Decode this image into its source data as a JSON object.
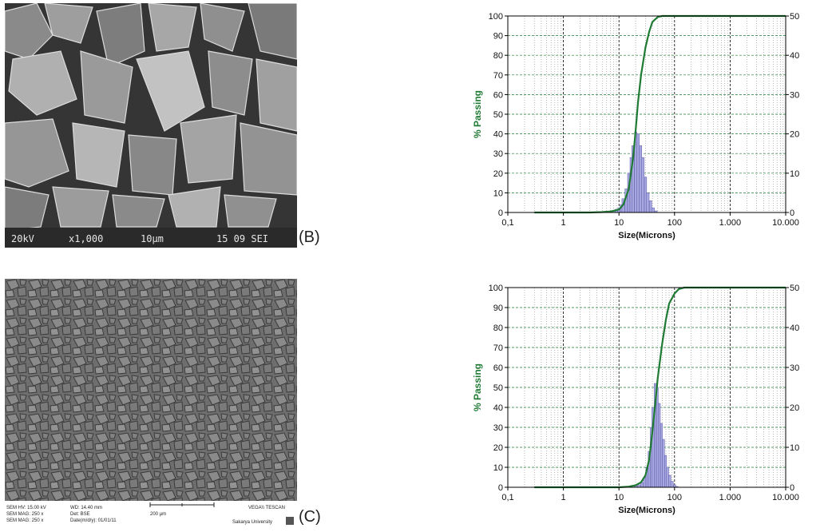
{
  "panels": [
    {
      "label": "(B)",
      "sem": {
        "info_bar": [
          "20kV",
          "x1,000",
          "10µm",
          "15 09 SEI"
        ]
      }
    },
    {
      "label": "(C)",
      "sem": {
        "info_lines_left": [
          "SEM HV: 15.00 kV",
          "SEM MAG: 250 x",
          "SEM MAG: 250 x"
        ],
        "info_lines_mid": [
          "WD: 14.40 mm",
          "Det: BSE",
          "Date(m/d/y): 01/01/11"
        ],
        "scale_bar": "200 µm",
        "brand": "VEGA\\\\ TESCAN",
        "institution": "Sakarya University"
      }
    }
  ],
  "chart_data": [
    {
      "type": "line+bar",
      "ylabel": "% Passing",
      "xlabel": "Size(Microns)",
      "xscale": "log",
      "xlim": [
        0.1,
        10000
      ],
      "ylim_left": [
        0,
        100
      ],
      "ylim_right": [
        0,
        50
      ],
      "x_tick_labels": [
        "0,1",
        "1",
        "10",
        "100",
        "1.000",
        "10.000"
      ],
      "y_tick_labels_left": [
        "0",
        "10",
        "20",
        "30",
        "40",
        "50",
        "60",
        "70",
        "80",
        "90",
        "100"
      ],
      "y_tick_labels_right": [
        "0",
        "10",
        "20",
        "30",
        "40",
        "50"
      ],
      "grid": true,
      "colors": {
        "cumulative": "#1f7a33",
        "histogram": "#a8a8e0",
        "histogram_edge": "#5a5aa8",
        "grid_major": "#000000",
        "grid_minor": "#1f7a33"
      },
      "cumulative": {
        "x": [
          0.3,
          1,
          3,
          5,
          7,
          10,
          12,
          15,
          18,
          20,
          22,
          25,
          30,
          35,
          40,
          50,
          60,
          80,
          100,
          1000,
          10000
        ],
        "y": [
          0,
          0,
          0,
          0.2,
          0.5,
          1.5,
          4,
          12,
          28,
          42,
          56,
          70,
          84,
          92,
          97,
          99.5,
          100,
          100,
          100,
          100,
          100
        ]
      },
      "histogram": {
        "x": [
          7,
          8,
          9,
          10,
          11,
          12,
          13.5,
          15,
          16.5,
          18,
          20,
          22,
          24.5,
          27,
          30,
          33,
          37,
          41,
          46
        ],
        "y": [
          0.2,
          0.4,
          0.8,
          1.2,
          2,
          3.5,
          6,
          10,
          14,
          17,
          20.5,
          20,
          17,
          14,
          9,
          5,
          3,
          1.2,
          0.4
        ]
      }
    },
    {
      "type": "line+bar",
      "ylabel": "% Passing",
      "xlabel": "Size(Microns)",
      "xscale": "log",
      "xlim": [
        0.1,
        10000
      ],
      "ylim_left": [
        0,
        100
      ],
      "ylim_right": [
        0,
        50
      ],
      "x_tick_labels": [
        "0,1",
        "1",
        "10",
        "100",
        "1.000",
        "10.000"
      ],
      "y_tick_labels_left": [
        "0",
        "10",
        "20",
        "30",
        "40",
        "50",
        "60",
        "70",
        "80",
        "90",
        "100"
      ],
      "y_tick_labels_right": [
        "0",
        "10",
        "20",
        "30",
        "40",
        "50"
      ],
      "grid": true,
      "colors": {
        "cumulative": "#1f7a33",
        "histogram": "#a8a8e0",
        "histogram_edge": "#5a5aa8",
        "grid_major": "#000000",
        "grid_minor": "#1f7a33"
      },
      "cumulative": {
        "x": [
          0.3,
          1,
          5,
          10,
          15,
          20,
          25,
          30,
          35,
          40,
          45,
          50,
          60,
          70,
          80,
          100,
          120,
          150,
          1000,
          10000
        ],
        "y": [
          0,
          0,
          0,
          0,
          0.3,
          1,
          2.5,
          6,
          14,
          28,
          42,
          55,
          72,
          84,
          92,
          97,
          99.3,
          100,
          100,
          100
        ]
      },
      "histogram": {
        "x": [
          20,
          23,
          26,
          29,
          32,
          35,
          38,
          41,
          45,
          49,
          53,
          58,
          63,
          69,
          75,
          82,
          90,
          100,
          110
        ],
        "y": [
          0.3,
          0.6,
          1.2,
          2.5,
          5,
          9,
          15,
          20,
          26,
          25,
          21,
          16,
          12,
          8,
          5,
          3,
          1.5,
          0.6,
          0.2
        ]
      }
    }
  ]
}
